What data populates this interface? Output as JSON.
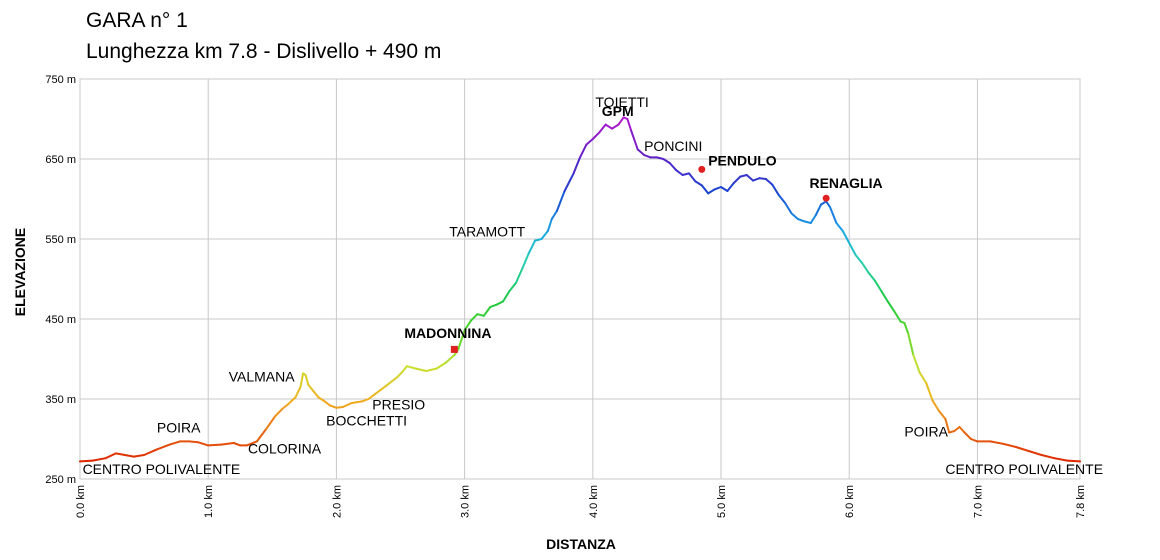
{
  "header": {
    "title": "GARA n° 1",
    "subtitle": "Lunghezza km 7.8 - Dislivello + 490 m"
  },
  "chart_data": {
    "type": "area",
    "xlabel": "DISTANZA",
    "ylabel": "ELEVAZIONE",
    "xlim": [
      0,
      7.8
    ],
    "ylim": [
      250,
      750
    ],
    "grid": true,
    "x_ticks": [
      {
        "value": 0,
        "label": "0.0 km"
      },
      {
        "value": 1,
        "label": "1.0 km"
      },
      {
        "value": 2,
        "label": "2.0 km"
      },
      {
        "value": 3,
        "label": "3.0 km"
      },
      {
        "value": 4,
        "label": "4.0 km"
      },
      {
        "value": 5,
        "label": "5.0 km"
      },
      {
        "value": 6,
        "label": "6.0 km"
      },
      {
        "value": 7,
        "label": "7.0 km"
      },
      {
        "value": 7.8,
        "label": "7.8 km"
      }
    ],
    "y_ticks": [
      {
        "value": 250,
        "label": "250 m"
      },
      {
        "value": 350,
        "label": "350 m"
      },
      {
        "value": 450,
        "label": "450 m"
      },
      {
        "value": 550,
        "label": "550 m"
      },
      {
        "value": 650,
        "label": "650 m"
      },
      {
        "value": 750,
        "label": "750 m"
      }
    ],
    "color_stops": [
      {
        "elev": 270,
        "color": "#dd2200"
      },
      {
        "elev": 310,
        "color": "#e86a10"
      },
      {
        "elev": 350,
        "color": "#f0b020"
      },
      {
        "elev": 390,
        "color": "#c8e030"
      },
      {
        "elev": 430,
        "color": "#5cd82c"
      },
      {
        "elev": 470,
        "color": "#1ec83a"
      },
      {
        "elev": 520,
        "color": "#26d0b0"
      },
      {
        "elev": 560,
        "color": "#1aa6e6"
      },
      {
        "elev": 610,
        "color": "#1a44d0"
      },
      {
        "elev": 650,
        "color": "#5a22c8"
      },
      {
        "elev": 700,
        "color": "#b01aca"
      }
    ],
    "series": [
      {
        "points": [
          [
            0.0,
            272
          ],
          [
            0.1,
            273
          ],
          [
            0.2,
            276
          ],
          [
            0.28,
            282
          ],
          [
            0.35,
            280
          ],
          [
            0.42,
            278
          ],
          [
            0.5,
            280
          ],
          [
            0.6,
            287
          ],
          [
            0.7,
            293
          ],
          [
            0.78,
            297
          ],
          [
            0.85,
            297
          ],
          [
            0.92,
            296
          ],
          [
            1.0,
            292
          ],
          [
            1.1,
            293
          ],
          [
            1.2,
            295
          ],
          [
            1.25,
            292
          ],
          [
            1.3,
            292
          ],
          [
            1.38,
            297
          ],
          [
            1.45,
            312
          ],
          [
            1.52,
            328
          ],
          [
            1.58,
            338
          ],
          [
            1.62,
            343
          ],
          [
            1.68,
            352
          ],
          [
            1.72,
            365
          ],
          [
            1.74,
            382
          ],
          [
            1.76,
            380
          ],
          [
            1.78,
            368
          ],
          [
            1.82,
            360
          ],
          [
            1.86,
            352
          ],
          [
            1.9,
            348
          ],
          [
            1.95,
            342
          ],
          [
            2.0,
            339
          ],
          [
            2.05,
            340
          ],
          [
            2.12,
            345
          ],
          [
            2.2,
            347
          ],
          [
            2.25,
            350
          ],
          [
            2.3,
            356
          ],
          [
            2.35,
            362
          ],
          [
            2.4,
            368
          ],
          [
            2.48,
            378
          ],
          [
            2.52,
            385
          ],
          [
            2.55,
            391
          ],
          [
            2.62,
            388
          ],
          [
            2.7,
            385
          ],
          [
            2.78,
            388
          ],
          [
            2.85,
            395
          ],
          [
            2.92,
            405
          ],
          [
            2.95,
            412
          ],
          [
            3.0,
            436
          ],
          [
            3.05,
            448
          ],
          [
            3.1,
            456
          ],
          [
            3.15,
            454
          ],
          [
            3.2,
            465
          ],
          [
            3.25,
            468
          ],
          [
            3.3,
            472
          ],
          [
            3.35,
            485
          ],
          [
            3.4,
            495
          ],
          [
            3.45,
            513
          ],
          [
            3.5,
            532
          ],
          [
            3.55,
            548
          ],
          [
            3.6,
            550
          ],
          [
            3.65,
            560
          ],
          [
            3.68,
            575
          ],
          [
            3.72,
            585
          ],
          [
            3.78,
            610
          ],
          [
            3.85,
            632
          ],
          [
            3.9,
            652
          ],
          [
            3.95,
            668
          ],
          [
            4.0,
            675
          ],
          [
            4.05,
            683
          ],
          [
            4.1,
            693
          ],
          [
            4.15,
            688
          ],
          [
            4.2,
            693
          ],
          [
            4.24,
            702
          ],
          [
            4.27,
            700
          ],
          [
            4.3,
            685
          ],
          [
            4.35,
            662
          ],
          [
            4.4,
            655
          ],
          [
            4.45,
            652
          ],
          [
            4.5,
            652
          ],
          [
            4.55,
            650
          ],
          [
            4.6,
            645
          ],
          [
            4.65,
            636
          ],
          [
            4.7,
            630
          ],
          [
            4.75,
            632
          ],
          [
            4.8,
            622
          ],
          [
            4.85,
            617
          ],
          [
            4.9,
            607
          ],
          [
            4.95,
            612
          ],
          [
            5.0,
            615
          ],
          [
            5.05,
            610
          ],
          [
            5.1,
            620
          ],
          [
            5.15,
            628
          ],
          [
            5.2,
            630
          ],
          [
            5.25,
            623
          ],
          [
            5.3,
            626
          ],
          [
            5.35,
            625
          ],
          [
            5.4,
            618
          ],
          [
            5.45,
            605
          ],
          [
            5.5,
            595
          ],
          [
            5.55,
            582
          ],
          [
            5.6,
            575
          ],
          [
            5.65,
            572
          ],
          [
            5.7,
            570
          ],
          [
            5.74,
            580
          ],
          [
            5.78,
            593
          ],
          [
            5.82,
            597
          ],
          [
            5.85,
            590
          ],
          [
            5.9,
            570
          ],
          [
            5.95,
            560
          ],
          [
            6.0,
            545
          ],
          [
            6.05,
            530
          ],
          [
            6.1,
            520
          ],
          [
            6.15,
            508
          ],
          [
            6.2,
            498
          ],
          [
            6.25,
            485
          ],
          [
            6.3,
            472
          ],
          [
            6.35,
            460
          ],
          [
            6.4,
            447
          ],
          [
            6.43,
            445
          ],
          [
            6.46,
            432
          ],
          [
            6.5,
            405
          ],
          [
            6.55,
            383
          ],
          [
            6.6,
            370
          ],
          [
            6.65,
            348
          ],
          [
            6.7,
            335
          ],
          [
            6.75,
            325
          ],
          [
            6.78,
            308
          ],
          [
            6.82,
            310
          ],
          [
            6.86,
            315
          ],
          [
            6.9,
            308
          ],
          [
            6.95,
            300
          ],
          [
            7.0,
            297
          ],
          [
            7.1,
            297
          ],
          [
            7.2,
            294
          ],
          [
            7.3,
            290
          ],
          [
            7.4,
            285
          ],
          [
            7.5,
            280
          ],
          [
            7.6,
            276
          ],
          [
            7.7,
            273
          ],
          [
            7.8,
            272
          ]
        ]
      }
    ],
    "markers": [
      {
        "x": 2.92,
        "y": 412,
        "color": "#e02020",
        "shape": "square"
      },
      {
        "x": 4.85,
        "y": 637,
        "color": "#e02020",
        "shape": "circle"
      },
      {
        "x": 5.82,
        "y": 601,
        "color": "#e02020",
        "shape": "circle"
      }
    ],
    "annotations": [
      {
        "text": "CENTRO POLIVALENTE",
        "x": 0.02,
        "y": 256,
        "bold": false
      },
      {
        "text": "POIRA",
        "x": 0.6,
        "y": 308,
        "bold": false
      },
      {
        "text": "COLORINA",
        "x": 1.31,
        "y": 282,
        "bold": false
      },
      {
        "text": "VALMANA",
        "x": 1.16,
        "y": 372,
        "bold": false
      },
      {
        "text": "BOCCHETTI",
        "x": 1.92,
        "y": 317,
        "bold": false
      },
      {
        "text": "PRESIO",
        "x": 2.28,
        "y": 337,
        "bold": false
      },
      {
        "text": "MADONNINA",
        "x": 2.53,
        "y": 426,
        "bold": true
      },
      {
        "text": "TARAMOTT",
        "x": 2.88,
        "y": 553,
        "bold": false
      },
      {
        "text": "TOIETTI",
        "x": 4.02,
        "y": 715,
        "bold": false
      },
      {
        "text": "GPM",
        "x": 4.07,
        "y": 704,
        "bold": true
      },
      {
        "text": "PONCINI",
        "x": 4.4,
        "y": 660,
        "bold": false
      },
      {
        "text": "PENDULO",
        "x": 4.9,
        "y": 642,
        "bold": true
      },
      {
        "text": "RENAGLIA",
        "x": 5.69,
        "y": 614,
        "bold": true
      },
      {
        "text": "POIRA",
        "x": 6.43,
        "y": 303,
        "bold": false
      },
      {
        "text": "CENTRO POLIVALENTE",
        "x": 6.75,
        "y": 256,
        "bold": false
      }
    ]
  }
}
